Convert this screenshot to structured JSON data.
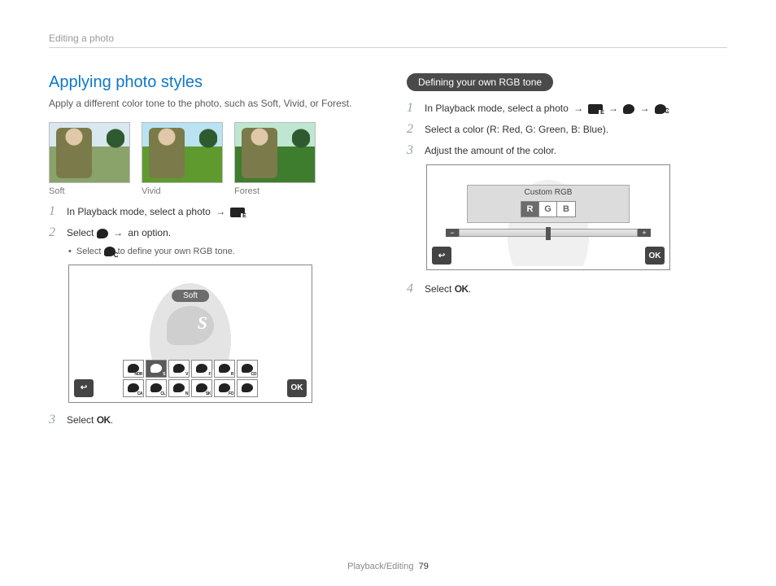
{
  "breadcrumb": "Editing a photo",
  "footer": {
    "section": "Playback/Editing",
    "page": "79"
  },
  "colors": {
    "heading": "#0d78c9",
    "text": "#333333",
    "muted": "#9a9a9a",
    "pill_bg": "#4a4a4a",
    "tile_selected": "#5a5a5a",
    "panel_bg": "#dcdcdc"
  },
  "left": {
    "title": "Applying photo styles",
    "lead": "Apply a different color tone to the photo, such as Soft, Vivid, or Forest.",
    "samples": [
      {
        "label": "Soft",
        "sky": "#d9e8ef",
        "grass": "#8aa36a"
      },
      {
        "label": "Vivid",
        "sky": "#b9e3f2",
        "grass": "#5f9a2e"
      },
      {
        "label": "Forest",
        "sky": "#bfe6d0",
        "grass": "#3f7d2e"
      }
    ],
    "steps": {
      "s1": {
        "pre": "In Playback mode, select a photo",
        "arrow": "→",
        "after": "."
      },
      "s2": {
        "pre": "Select",
        "arrow": "→",
        "suffix": "an option."
      },
      "s2_sub": {
        "pre": "Select",
        "suffix": "to define your own RGB tone."
      },
      "s3": {
        "pre": "Select",
        "ok": "OK",
        "suffix": "."
      }
    },
    "mock": {
      "label": "Soft",
      "palette_letter": "S",
      "row1": [
        "NOR",
        "S",
        "V",
        "F",
        "R",
        "CO"
      ],
      "row2": [
        "CA",
        "CL",
        "N",
        "SK",
        "FO",
        ""
      ],
      "selected_index": 1,
      "back_glyph": "↩",
      "ok_glyph": "OK"
    }
  },
  "right": {
    "pill": "Defining your own RGB tone",
    "steps": {
      "s1": {
        "pre": "In Playback mode, select a photo",
        "arrow": "→",
        "after": "."
      },
      "s2": "Select a color (R: Red, G: Green, B: Blue).",
      "s3": "Adjust the amount of the color.",
      "s4": {
        "pre": "Select",
        "ok": "OK",
        "suffix": "."
      }
    },
    "mock": {
      "title": "Custom RGB",
      "tabs": [
        "R",
        "G",
        "B"
      ],
      "active_index": 0,
      "minus": "−",
      "plus": "+",
      "back_glyph": "↩",
      "ok_glyph": "OK"
    }
  }
}
